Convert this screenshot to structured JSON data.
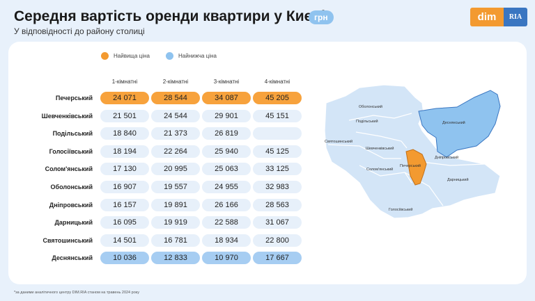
{
  "header": {
    "title": "Середня вартість оренди квартири у Києві",
    "currency": "грн",
    "subtitle": "У відповідності до району столиці"
  },
  "logo": {
    "left": "dim",
    "right": "RIA"
  },
  "legend": {
    "high": "Найвища ціна",
    "low": "Найнижча ціна"
  },
  "colors": {
    "high": "#f39a30",
    "low": "#8fc3ef",
    "cell": "#e7f0fa",
    "map_base": "#d3e5f7"
  },
  "chart_data": {
    "type": "table",
    "columns": [
      "1-кімнатні",
      "2-кімнатні",
      "3-кімнатні",
      "4-кімнатні"
    ],
    "rows": [
      {
        "district": "Печерський",
        "values": [
          "24 071",
          "28 544",
          "34 087",
          "45 205"
        ],
        "highlight": "high"
      },
      {
        "district": "Шевченківський",
        "values": [
          "21 501",
          "24 544",
          "29 901",
          "45 151"
        ]
      },
      {
        "district": "Подільський",
        "values": [
          "18 840",
          "21 373",
          "26 819",
          ""
        ]
      },
      {
        "district": "Голосіївський",
        "values": [
          "18 194",
          "22 264",
          "25 940",
          "45 125"
        ]
      },
      {
        "district": "Солом'янський",
        "values": [
          "17 130",
          "20 995",
          "25 063",
          "33 125"
        ]
      },
      {
        "district": "Оболонський",
        "values": [
          "16 907",
          "19 557",
          "24 955",
          "32 983"
        ]
      },
      {
        "district": "Дніпровський",
        "values": [
          "16 157",
          "19 891",
          "26 166",
          "28 563"
        ]
      },
      {
        "district": "Дарницький",
        "values": [
          "16 095",
          "19 919",
          "22 588",
          "31 067"
        ]
      },
      {
        "district": "Святошинський",
        "values": [
          "14 501",
          "16 781",
          "18 934",
          "22 800"
        ]
      },
      {
        "district": "Деснянський",
        "values": [
          "10 036",
          "12 833",
          "10 970",
          "17 667"
        ],
        "highlight": "low"
      }
    ]
  },
  "map_labels": {
    "obolonskyi": "Оболонський",
    "podilskyi": "Подільський",
    "sviatoshynskyi": "Святошинський",
    "shevchenkivskyi": "Шевченківський",
    "solomianskyi": "Солом'янський",
    "pecherskyi": "Печерський",
    "holosiivskyi": "Голосіївський",
    "dniprovskyi": "Дніпровський",
    "darnytskyi": "Дарницький",
    "desnianskyi": "Деснянський"
  },
  "footnote": "*за даними аналітичного центру DIM.RIA станом на травень 2024 року"
}
